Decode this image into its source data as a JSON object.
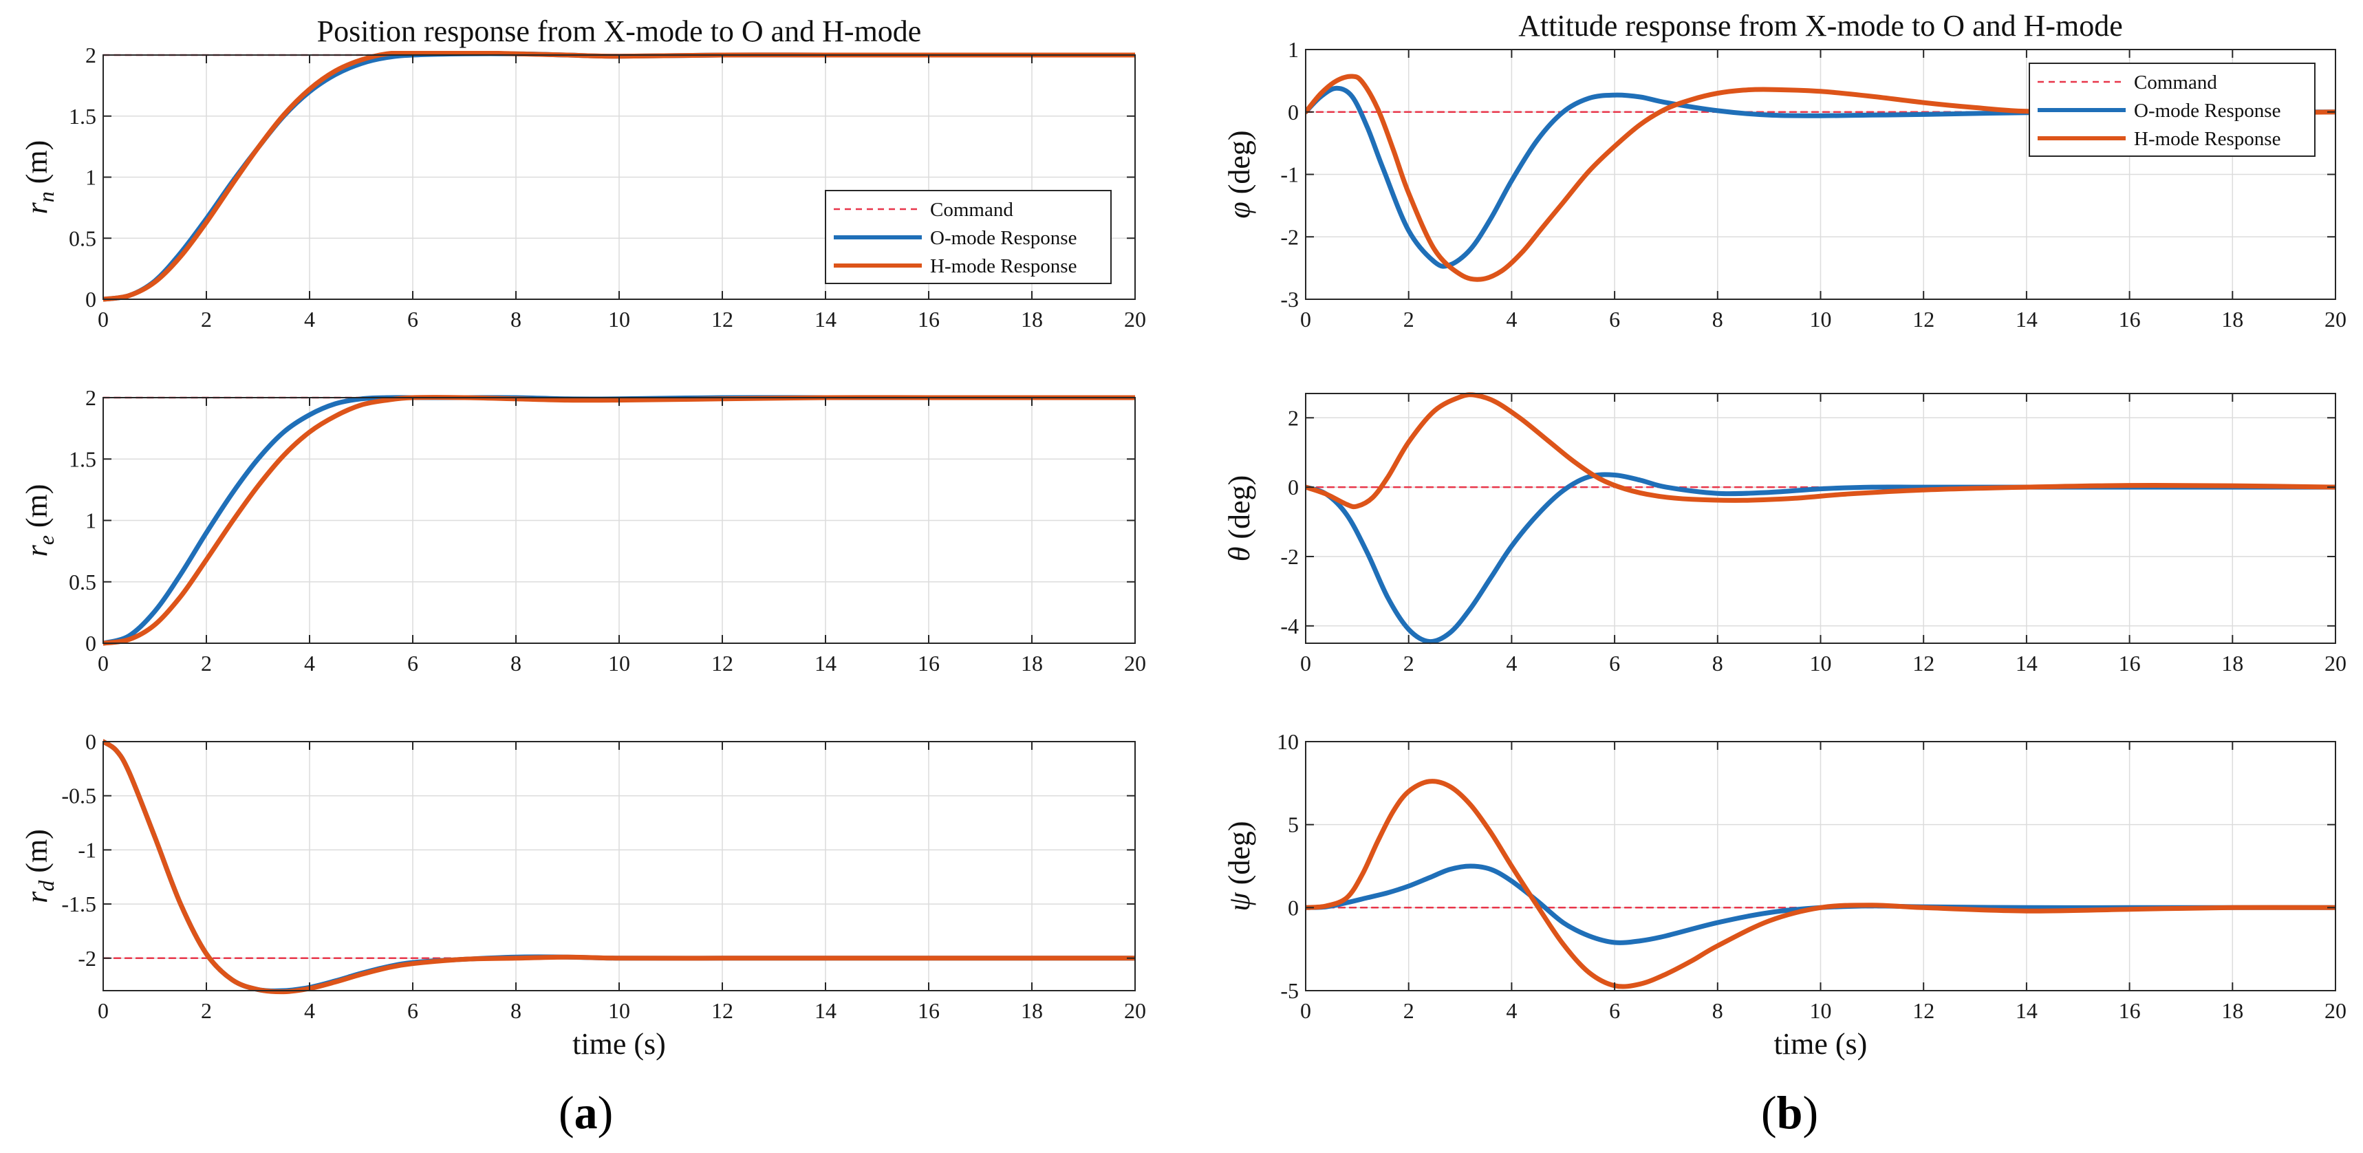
{
  "colors": {
    "command": "#e8364a",
    "o_mode": "#1f6fb8",
    "h_mode": "#dd5419",
    "grid": "#dcdcdc",
    "axis": "#262626"
  },
  "panel_labels": {
    "a": "a",
    "b": "b"
  },
  "chart_data": [
    {
      "type": "line",
      "id": "rn",
      "title": "Position response from X-mode to O and H-mode",
      "xlabel": "",
      "ylabel": "r_n (m)",
      "ylabel_main": "r",
      "ylabel_sub": "n",
      "ylabel_unit": " (m)",
      "xlim": [
        0,
        20
      ],
      "ylim": [
        0,
        2
      ],
      "xticks": [
        0,
        2,
        4,
        6,
        8,
        10,
        12,
        14,
        16,
        18,
        20
      ],
      "yticks": [
        0,
        0.5,
        1,
        1.5,
        2
      ],
      "ytick_labels": [
        "0",
        "0.5",
        "1",
        "1.5",
        "2"
      ],
      "grid": true,
      "legend": {
        "position": "lower-right",
        "entries": [
          "Command",
          "O-mode Response",
          "H-mode Response"
        ]
      },
      "series": [
        {
          "name": "Command",
          "style": "dashed",
          "x": [
            0,
            20
          ],
          "y": [
            2,
            2
          ]
        },
        {
          "name": "O-mode Response",
          "style": "solid",
          "x": [
            0,
            0.5,
            1,
            1.5,
            2,
            2.5,
            3,
            3.5,
            4,
            4.5,
            5,
            5.5,
            6,
            7,
            8,
            9,
            10,
            12,
            14,
            16,
            18,
            20
          ],
          "y": [
            0,
            0.03,
            0.15,
            0.38,
            0.66,
            0.96,
            1.24,
            1.5,
            1.7,
            1.84,
            1.93,
            1.98,
            2.0,
            2.01,
            2.01,
            2.0,
            1.99,
            2.0,
            2.0,
            2.0,
            2.0,
            2.0
          ]
        },
        {
          "name": "H-mode Response",
          "style": "solid",
          "x": [
            0,
            0.5,
            1,
            1.5,
            2,
            2.5,
            3,
            3.5,
            4,
            4.5,
            5,
            5.5,
            6,
            7,
            8,
            9,
            10,
            12,
            14,
            16,
            18,
            20
          ],
          "y": [
            0,
            0.03,
            0.14,
            0.35,
            0.63,
            0.94,
            1.24,
            1.51,
            1.72,
            1.87,
            1.96,
            2.01,
            2.02,
            2.02,
            2.01,
            2.0,
            1.99,
            2.0,
            2.0,
            2.0,
            2.0,
            2.0
          ]
        }
      ]
    },
    {
      "type": "line",
      "id": "re",
      "xlabel": "",
      "ylabel": "r_e (m)",
      "ylabel_main": "r",
      "ylabel_sub": "e",
      "ylabel_unit": " (m)",
      "xlim": [
        0,
        20
      ],
      "ylim": [
        0,
        2
      ],
      "xticks": [
        0,
        2,
        4,
        6,
        8,
        10,
        12,
        14,
        16,
        18,
        20
      ],
      "yticks": [
        0,
        0.5,
        1,
        1.5,
        2
      ],
      "ytick_labels": [
        "0",
        "0.5",
        "1",
        "1.5",
        "2"
      ],
      "grid": true,
      "series": [
        {
          "name": "Command",
          "style": "dashed",
          "x": [
            0,
            20
          ],
          "y": [
            2,
            2
          ]
        },
        {
          "name": "O-mode Response",
          "style": "solid",
          "x": [
            0,
            0.5,
            1,
            1.5,
            2,
            2.5,
            3,
            3.5,
            4,
            4.5,
            5,
            5.5,
            6,
            7,
            8,
            9,
            10,
            12,
            14,
            16,
            18,
            20
          ],
          "y": [
            0,
            0.06,
            0.26,
            0.56,
            0.9,
            1.22,
            1.5,
            1.72,
            1.86,
            1.95,
            1.99,
            2.0,
            2.0,
            2.0,
            2.0,
            1.99,
            1.99,
            2.0,
            2.0,
            2.0,
            2.0,
            2.0
          ]
        },
        {
          "name": "H-mode Response",
          "style": "solid",
          "x": [
            0,
            0.5,
            1,
            1.5,
            2,
            2.5,
            3,
            3.5,
            4,
            4.5,
            5,
            5.5,
            6,
            7,
            8,
            9,
            10,
            12,
            14,
            16,
            18,
            20
          ],
          "y": [
            0,
            0.03,
            0.15,
            0.38,
            0.68,
            0.99,
            1.28,
            1.53,
            1.72,
            1.85,
            1.94,
            1.98,
            2.0,
            2.0,
            1.99,
            1.98,
            1.98,
            1.99,
            2.0,
            2.0,
            2.0,
            2.0
          ]
        }
      ]
    },
    {
      "type": "line",
      "id": "rd",
      "xlabel": "time (s)",
      "ylabel": "r_d (m)",
      "ylabel_main": "r",
      "ylabel_sub": "d",
      "ylabel_unit": " (m)",
      "xlim": [
        0,
        20
      ],
      "ylim": [
        -2.3,
        0
      ],
      "xticks": [
        0,
        2,
        4,
        6,
        8,
        10,
        12,
        14,
        16,
        18,
        20
      ],
      "yticks": [
        0,
        -0.5,
        -1,
        -1.5,
        -2
      ],
      "ytick_labels": [
        "0",
        "-0.5",
        "-1",
        "-1.5",
        "-2"
      ],
      "grid": true,
      "series": [
        {
          "name": "Command",
          "style": "dashed",
          "x": [
            0,
            20
          ],
          "y": [
            -2,
            -2
          ]
        },
        {
          "name": "O-mode Response",
          "style": "solid",
          "x": [
            0,
            0.25,
            0.5,
            1,
            1.5,
            2,
            2.5,
            3,
            3.5,
            4,
            4.5,
            5,
            5.5,
            6,
            7,
            8,
            9,
            10,
            12,
            14,
            16,
            18,
            20
          ],
          "y": [
            0,
            -0.08,
            -0.28,
            -0.88,
            -1.5,
            -1.96,
            -2.2,
            -2.29,
            -2.3,
            -2.27,
            -2.21,
            -2.14,
            -2.08,
            -2.04,
            -2.01,
            -1.99,
            -1.99,
            -2.0,
            -2.0,
            -2.0,
            -2.0,
            -2.0,
            -2.0
          ]
        },
        {
          "name": "H-mode Response",
          "style": "solid",
          "x": [
            0,
            0.25,
            0.5,
            1,
            1.5,
            2,
            2.5,
            3,
            3.5,
            4,
            4.5,
            5,
            5.5,
            6,
            7,
            8,
            9,
            10,
            12,
            14,
            16,
            18,
            20
          ],
          "y": [
            0,
            -0.08,
            -0.28,
            -0.88,
            -1.5,
            -1.96,
            -2.2,
            -2.29,
            -2.31,
            -2.28,
            -2.22,
            -2.15,
            -2.09,
            -2.05,
            -2.01,
            -2.0,
            -1.99,
            -2.0,
            -2.0,
            -2.0,
            -2.0,
            -2.0,
            -2.0
          ]
        }
      ]
    },
    {
      "type": "line",
      "id": "phi",
      "title": "Attitude response from X-mode to O and H-mode",
      "xlabel": "",
      "ylabel": "φ (deg)",
      "ylabel_main": "φ",
      "ylabel_sub": "",
      "ylabel_unit": " (deg)",
      "xlim": [
        0,
        20
      ],
      "ylim": [
        -3,
        1
      ],
      "xticks": [
        0,
        2,
        4,
        6,
        8,
        10,
        12,
        14,
        16,
        18,
        20
      ],
      "yticks": [
        1,
        0,
        -1,
        -2,
        -3
      ],
      "ytick_labels": [
        "1",
        "0",
        "-1",
        "-2",
        "-3"
      ],
      "grid": true,
      "legend": {
        "position": "top-right",
        "entries": [
          "Command",
          "O-mode Response",
          "H-mode Response"
        ]
      },
      "series": [
        {
          "name": "Command",
          "style": "dashed",
          "x": [
            0,
            20
          ],
          "y": [
            0,
            0
          ]
        },
        {
          "name": "O-mode Response",
          "style": "solid",
          "x": [
            0,
            0.3,
            0.6,
            0.9,
            1.2,
            1.5,
            2,
            2.5,
            2.8,
            3.2,
            3.6,
            4,
            4.5,
            5,
            5.5,
            6,
            6.5,
            7,
            8,
            9,
            10,
            11,
            12,
            14,
            16,
            18,
            20
          ],
          "y": [
            0,
            0.25,
            0.38,
            0.25,
            -0.25,
            -0.9,
            -1.9,
            -2.4,
            -2.45,
            -2.2,
            -1.7,
            -1.1,
            -0.45,
            0.0,
            0.22,
            0.27,
            0.24,
            0.15,
            0.02,
            -0.05,
            -0.06,
            -0.05,
            -0.04,
            -0.01,
            0.0,
            0.0,
            0.0
          ]
        },
        {
          "name": "H-mode Response",
          "style": "solid",
          "x": [
            0,
            0.3,
            0.6,
            0.9,
            1.1,
            1.4,
            1.7,
            2,
            2.5,
            3,
            3.4,
            3.8,
            4.2,
            4.6,
            5,
            5.5,
            6,
            6.5,
            7,
            7.5,
            8,
            8.5,
            9,
            10,
            11,
            12,
            13,
            14,
            16,
            18,
            20
          ],
          "y": [
            0,
            0.3,
            0.5,
            0.57,
            0.48,
            0.05,
            -0.6,
            -1.3,
            -2.2,
            -2.6,
            -2.68,
            -2.55,
            -2.25,
            -1.85,
            -1.45,
            -0.95,
            -0.55,
            -0.2,
            0.05,
            0.2,
            0.3,
            0.35,
            0.36,
            0.33,
            0.25,
            0.15,
            0.07,
            0.01,
            -0.02,
            -0.02,
            0.0
          ]
        }
      ]
    },
    {
      "type": "line",
      "id": "theta",
      "xlabel": "",
      "ylabel": "θ (deg)",
      "ylabel_main": "θ",
      "ylabel_sub": "",
      "ylabel_unit": " (deg)",
      "xlim": [
        0,
        20
      ],
      "ylim": [
        -4.5,
        2.7
      ],
      "xticks": [
        0,
        2,
        4,
        6,
        8,
        10,
        12,
        14,
        16,
        18,
        20
      ],
      "yticks": [
        2,
        0,
        -2,
        -4
      ],
      "ytick_labels": [
        "2",
        "0",
        "-2",
        "-4"
      ],
      "grid": true,
      "series": [
        {
          "name": "Command",
          "style": "dashed",
          "x": [
            0,
            20
          ],
          "y": [
            0,
            0
          ]
        },
        {
          "name": "O-mode Response",
          "style": "solid",
          "x": [
            0,
            0.4,
            0.8,
            1.2,
            1.6,
            2,
            2.4,
            2.8,
            3.2,
            3.6,
            4,
            4.5,
            5,
            5.5,
            6,
            6.5,
            7,
            8,
            9,
            10,
            11,
            12,
            14,
            16,
            18,
            20
          ],
          "y": [
            0,
            -0.2,
            -0.8,
            -1.9,
            -3.2,
            -4.1,
            -4.45,
            -4.2,
            -3.5,
            -2.6,
            -1.7,
            -0.8,
            -0.1,
            0.3,
            0.35,
            0.2,
            0.0,
            -0.18,
            -0.15,
            -0.05,
            0.0,
            0.0,
            0.0,
            0.0,
            0.0,
            0.0
          ]
        },
        {
          "name": "H-mode Response",
          "style": "solid",
          "x": [
            0,
            0.4,
            0.8,
            1.0,
            1.3,
            1.6,
            2,
            2.5,
            3,
            3.3,
            3.7,
            4.2,
            4.7,
            5.2,
            5.7,
            6.2,
            6.8,
            7.5,
            8.5,
            9.5,
            10.5,
            12,
            14,
            16,
            18,
            20
          ],
          "y": [
            0,
            -0.2,
            -0.5,
            -0.55,
            -0.3,
            0.3,
            1.3,
            2.2,
            2.6,
            2.65,
            2.45,
            1.95,
            1.35,
            0.75,
            0.25,
            -0.05,
            -0.25,
            -0.35,
            -0.38,
            -0.32,
            -0.2,
            -0.08,
            0.0,
            0.05,
            0.04,
            0.0
          ]
        }
      ]
    },
    {
      "type": "line",
      "id": "psi",
      "xlabel": "time (s)",
      "ylabel": "ψ (deg)",
      "ylabel_main": "ψ",
      "ylabel_sub": "",
      "ylabel_unit": " (deg)",
      "xlim": [
        0,
        20
      ],
      "ylim": [
        -5,
        10
      ],
      "xticks": [
        0,
        2,
        4,
        6,
        8,
        10,
        12,
        14,
        16,
        18,
        20
      ],
      "yticks": [
        10,
        5,
        0,
        -5
      ],
      "ytick_labels": [
        "10",
        "5",
        "0",
        "-5"
      ],
      "grid": true,
      "series": [
        {
          "name": "Command",
          "style": "dashed",
          "x": [
            0,
            20
          ],
          "y": [
            0,
            0
          ]
        },
        {
          "name": "O-mode Response",
          "style": "solid",
          "x": [
            0,
            0.4,
            0.8,
            1.2,
            1.6,
            2,
            2.4,
            2.8,
            3.2,
            3.6,
            4,
            4.5,
            5,
            5.5,
            6,
            6.5,
            7,
            8,
            9,
            10,
            11,
            12,
            14,
            16,
            18,
            20
          ],
          "y": [
            0,
            0.05,
            0.3,
            0.6,
            0.9,
            1.3,
            1.8,
            2.3,
            2.5,
            2.3,
            1.6,
            0.4,
            -0.9,
            -1.7,
            -2.1,
            -2.0,
            -1.7,
            -0.9,
            -0.3,
            0.0,
            0.1,
            0.05,
            0.0,
            0.0,
            0.0,
            0.0
          ]
        },
        {
          "name": "H-mode Response",
          "style": "solid",
          "x": [
            0,
            0.4,
            0.8,
            1.1,
            1.4,
            1.7,
            2,
            2.4,
            2.8,
            3.2,
            3.6,
            4,
            4.5,
            5,
            5.5,
            6,
            6.5,
            7,
            7.5,
            8,
            9,
            10,
            11,
            12,
            14,
            16,
            18,
            20
          ],
          "y": [
            0,
            0.1,
            0.6,
            2.0,
            4.0,
            5.8,
            7.0,
            7.6,
            7.3,
            6.2,
            4.5,
            2.5,
            0.1,
            -2.2,
            -3.9,
            -4.7,
            -4.6,
            -4.0,
            -3.2,
            -2.3,
            -0.8,
            0.0,
            0.15,
            0.0,
            -0.2,
            -0.1,
            0.0,
            0.0
          ]
        }
      ]
    }
  ]
}
